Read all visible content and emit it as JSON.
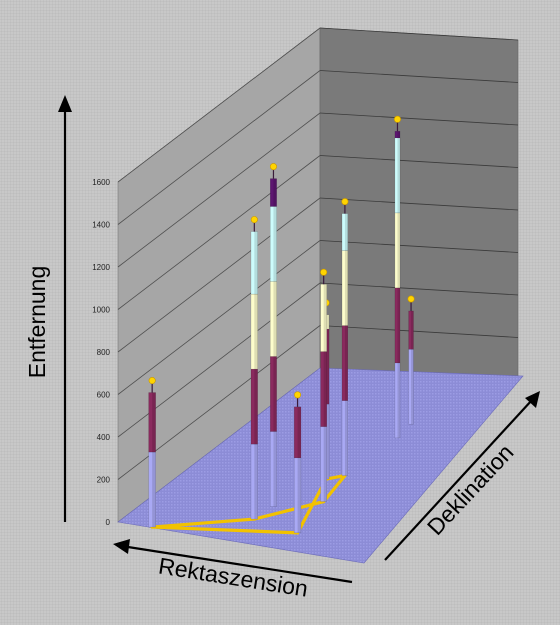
{
  "chart_data": {
    "type": "3d-bar",
    "title": "",
    "zlabel": "Entfernung",
    "xlabel": "Rektaszension",
    "ylabel": "Deklination",
    "zlim": [
      0,
      1600
    ],
    "z_ticks": [
      "0",
      "200",
      "400",
      "600",
      "800",
      "1000",
      "1200",
      "1400",
      "1600"
    ],
    "grid": true,
    "legend": "none",
    "colors": {
      "back_wall": "#a6a6a6",
      "side_wall": "#7a7a7a",
      "floor": "#8c8cd6",
      "constellation_line": "#f2c200",
      "star_marker": "#ffd400",
      "pole_colors": [
        "#a9a9f4",
        "#8a2a5e",
        "#fdfdcc",
        "#cdfcfc",
        "#5d1670",
        "#f08a80",
        "#1f6fb0"
      ]
    },
    "stars": [
      {
        "ra": 0.14,
        "dec": 0.0,
        "distance": 680
      },
      {
        "ra": 0.47,
        "dec": 0.12,
        "distance": 1400
      },
      {
        "ra": 0.49,
        "dec": 0.2,
        "distance": 1590
      },
      {
        "ra": 0.68,
        "dec": 0.08,
        "distance": 640
      },
      {
        "ra": 0.66,
        "dec": 0.26,
        "distance": 1070
      },
      {
        "ra": 0.64,
        "dec": 0.41,
        "distance": 1280
      },
      {
        "ra": 0.58,
        "dec": 0.38,
        "distance": 820
      },
      {
        "ra": 0.7,
        "dec": 0.64,
        "distance": 1490
      },
      {
        "ra": 0.7,
        "dec": 0.72,
        "distance": 580
      }
    ],
    "constellation_path": [
      0,
      1,
      4,
      5,
      6,
      3,
      0
    ]
  }
}
